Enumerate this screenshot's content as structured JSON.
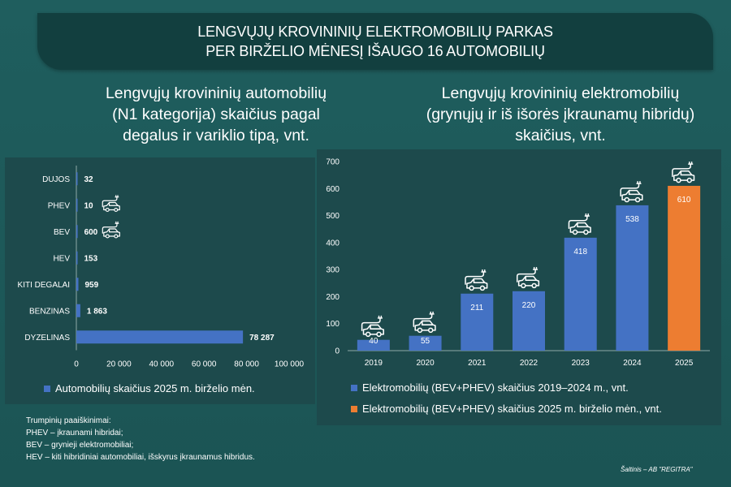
{
  "header": {
    "title_line1": "LENGVŲJŲ KROVININIŲ ELEKTROMOBILIŲ PARKAS",
    "title_line2": "PER BIRŽELIO MĖNESĮ IŠAUGO 16 AUTOMOBILIŲ"
  },
  "left_chart": {
    "title_lines": [
      "Lengvųjų krovininių automobilių",
      "(N1 kategorija) skaičius pagal",
      "degalus ir variklio tipą, vnt."
    ]
  },
  "right_chart": {
    "title_lines": [
      "Lengvųjų krovininių elektromobilių",
      "(grynųjų ir iš išorės įkraunamų hibridų)",
      "skaičius, vnt."
    ]
  },
  "chart_data": [
    {
      "type": "bar",
      "orientation": "horizontal",
      "categories": [
        "DUJOS",
        "PHEV",
        "BEV",
        "HEV",
        "KITI DEGALAI",
        "BENZINAS",
        "DYZELINAS"
      ],
      "series": [
        {
          "name": "Automobilių skaičius 2025 m. birželio mėn.",
          "values": [
            32,
            10,
            600,
            153,
            959,
            1863,
            78287
          ],
          "color": "#4472c4"
        }
      ],
      "data_labels": [
        "32",
        "10",
        "600",
        "153",
        "959",
        "1 863",
        "78 287"
      ],
      "xlim": [
        0,
        100000
      ],
      "x_ticks": [
        0,
        20000,
        40000,
        60000,
        80000,
        100000
      ],
      "x_tick_labels": [
        "0",
        "20 000",
        "40 000",
        "60 000",
        "80 000",
        "100 000"
      ],
      "grid": false,
      "legend_position": "bottom",
      "car_icon_categories": [
        "PHEV",
        "BEV"
      ]
    },
    {
      "type": "bar",
      "categories": [
        "2019",
        "2020",
        "2021",
        "2022",
        "2023",
        "2024",
        "2025"
      ],
      "values": [
        40,
        55,
        211,
        220,
        418,
        538,
        610
      ],
      "colors": [
        "#4472c4",
        "#4472c4",
        "#4472c4",
        "#4472c4",
        "#4472c4",
        "#4472c4",
        "#ed7d31"
      ],
      "series": [
        {
          "name": "Elektromobilių (BEV+PHEV) skaičius 2019–2024 m., vnt.",
          "color": "#4472c4"
        },
        {
          "name": "Elektromobilių (BEV+PHEV) skaičius 2025 m. birželio mėn., vnt.",
          "color": "#ed7d31"
        }
      ],
      "ylim": [
        0,
        700
      ],
      "y_ticks": [
        0,
        100,
        200,
        300,
        400,
        500,
        600,
        700
      ],
      "grid": false,
      "legend_position": "bottom",
      "car_icons": true
    }
  ],
  "notes": {
    "heading": "Trumpinių paaiškinimai:",
    "lines": [
      "PHEV – įkraunami hibridai;",
      "BEV – grynieji elektromobiliai;",
      "HEV – kiti hibridiniai automobiliai, išskyrus įkraunamus hibridus."
    ]
  },
  "source": "Šaltinis – AB \"REGITRA\""
}
